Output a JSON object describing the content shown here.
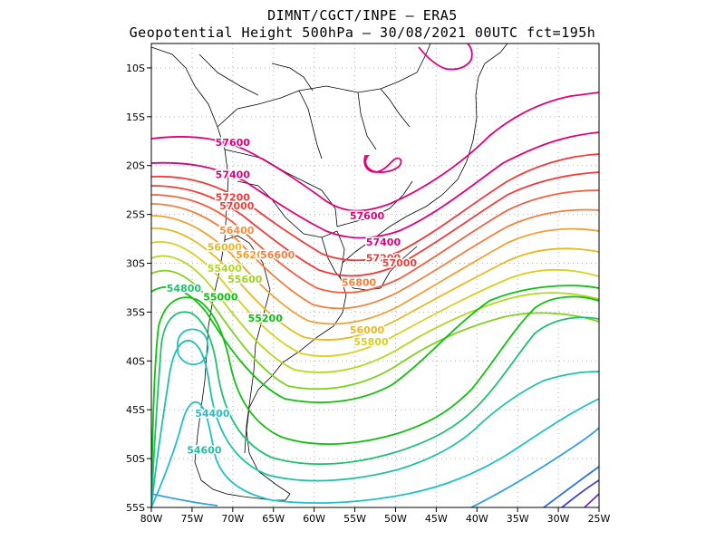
{
  "header": {
    "line1": "DIMNT/CGCT/INPE –  ERA5",
    "line2": "Geopotential Height 500hPa –  30/08/2021 00UTC fct=195h"
  },
  "axes": {
    "lat_labels": [
      "10S",
      "15S",
      "20S",
      "25S",
      "30S",
      "35S",
      "40S",
      "45S",
      "50S",
      "55S"
    ],
    "lon_labels": [
      "80W",
      "75W",
      "70W",
      "65W",
      "60W",
      "55W",
      "50W",
      "45W",
      "40W",
      "35W",
      "30W",
      "25W"
    ]
  },
  "chart_data": {
    "type": "contour",
    "field": "Geopotential Height 500hPa",
    "lon_range": [
      -80,
      -25
    ],
    "lat_range": [
      -55,
      -7.5
    ],
    "contour_labels": [
      {
        "text": "57600",
        "color": "#e0007a",
        "lon": -70,
        "lat": -18
      },
      {
        "text": "57400",
        "color": "#e0007a",
        "lon": -70,
        "lat": -21.3
      },
      {
        "text": "57200",
        "color": "#f03c3c",
        "lon": -70,
        "lat": -23.6
      },
      {
        "text": "57000",
        "color": "#f03c3c",
        "lon": -69.5,
        "lat": -24.5
      },
      {
        "text": "56400",
        "color": "#f09040",
        "lon": -69.5,
        "lat": -27
      },
      {
        "text": "56000",
        "color": "#e8b820",
        "lon": -71,
        "lat": -28.7
      },
      {
        "text": "56200",
        "color": "#f0a030",
        "lon": -67.5,
        "lat": -29.5
      },
      {
        "text": "56600",
        "color": "#f08040",
        "lon": -64.5,
        "lat": -29.5
      },
      {
        "text": "55400",
        "color": "#b0d820",
        "lon": -71,
        "lat": -30.9
      },
      {
        "text": "55600",
        "color": "#a0d020",
        "lon": -68.5,
        "lat": -32
      },
      {
        "text": "54800",
        "color": "#20c070",
        "lon": -76,
        "lat": -32.9
      },
      {
        "text": "55000",
        "color": "#10c010",
        "lon": -71.5,
        "lat": -33.8
      },
      {
        "text": "55200",
        "color": "#10c010",
        "lon": -66,
        "lat": -36
      },
      {
        "text": "57600",
        "color": "#e0007a",
        "lon": -53.5,
        "lat": -25.5
      },
      {
        "text": "57400",
        "color": "#e0007a",
        "lon": -51.5,
        "lat": -28.2
      },
      {
        "text": "57200",
        "color": "#f03c3c",
        "lon": -51.5,
        "lat": -29.8
      },
      {
        "text": "57000",
        "color": "#f03c3c",
        "lon": -49.5,
        "lat": -30.3
      },
      {
        "text": "56800",
        "color": "#f08040",
        "lon": -54.5,
        "lat": -32.3
      },
      {
        "text": "56000",
        "color": "#e8b820",
        "lon": -53.5,
        "lat": -37.2
      },
      {
        "text": "55800",
        "color": "#d8d020",
        "lon": -53,
        "lat": -38.4
      },
      {
        "text": "54400",
        "color": "#20c0c8",
        "lon": -72.5,
        "lat": -45.7
      },
      {
        "text": "54600",
        "color": "#20c0a8",
        "lon": -73.5,
        "lat": -49.5
      }
    ]
  }
}
